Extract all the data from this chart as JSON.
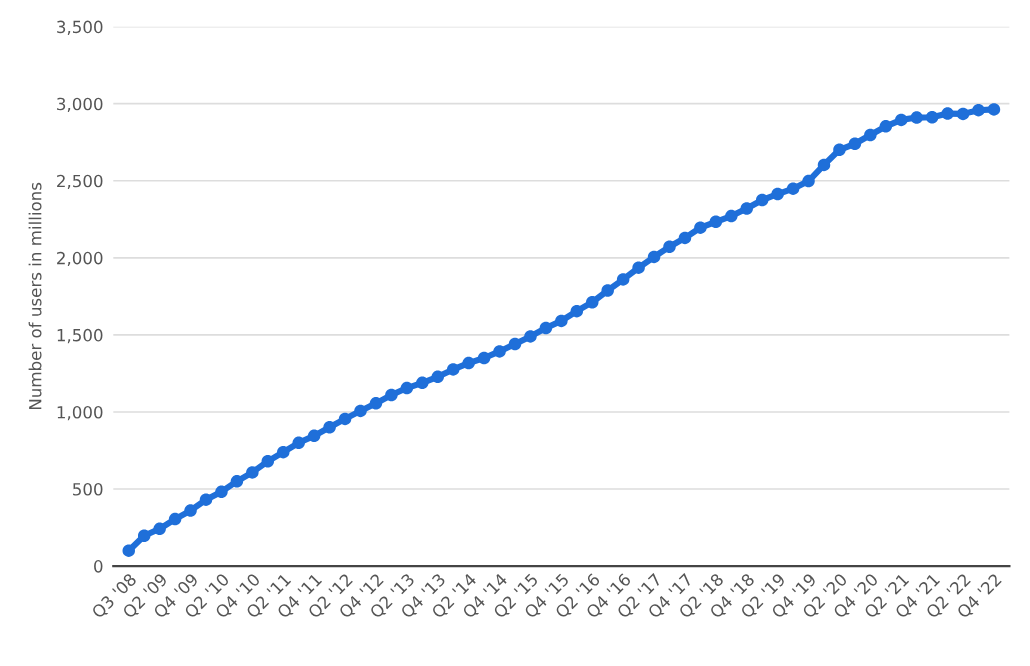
{
  "chart_data": {
    "type": "line",
    "ylabel": "Number of users in millions",
    "categories": [
      "Q3 '08",
      null,
      "Q2 '09",
      null,
      "Q4 '09",
      null,
      "Q2 '10",
      null,
      "Q4 '10",
      null,
      "Q2 '11",
      null,
      "Q4 '11",
      null,
      "Q2 '12",
      null,
      "Q4 '12",
      null,
      "Q2 '13",
      null,
      "Q4 '13",
      null,
      "Q2 '14",
      null,
      "Q4 '14",
      null,
      "Q2 '15",
      null,
      "Q4 '15",
      null,
      "Q2 '16",
      null,
      "Q4 '16",
      null,
      "Q2 '17",
      null,
      "Q4 '17",
      null,
      "Q2 '18",
      null,
      "Q4 '18",
      null,
      "Q2 '19",
      null,
      "Q4 '19",
      null,
      "Q2 '20",
      null,
      "Q4 '20",
      null,
      "Q2 '21",
      null,
      "Q4 '21",
      null,
      "Q2 '22",
      null,
      "Q4 '22"
    ],
    "series": [
      {
        "color": "#1f6fd9",
        "values": [
          100,
          197,
          242,
          305,
          360,
          431,
          482,
          550,
          608,
          680,
          739,
          800,
          845,
          901,
          955,
          1007,
          1056,
          1110,
          1155,
          1189,
          1228,
          1276,
          1317,
          1350,
          1393,
          1441,
          1490,
          1545,
          1591,
          1654,
          1712,
          1788,
          1860,
          1936,
          2006,
          2072,
          2129,
          2196,
          2234,
          2271,
          2320,
          2375,
          2414,
          2449,
          2498,
          2603,
          2701,
          2740,
          2797,
          2853,
          2895,
          2910,
          2912,
          2936,
          2934,
          2958,
          2963
        ]
      }
    ],
    "ylim": [
      0,
      3500
    ],
    "yticks": [
      0,
      {
        "value": 500,
        "label": "500"
      },
      {
        "value": 1000,
        "label": "1,000"
      },
      {
        "value": 1500,
        "label": "1,500"
      },
      {
        "value": 2000,
        "label": "2,000"
      },
      {
        "value": 2500,
        "label": "2,500"
      },
      {
        "value": 3000,
        "label": "3,000"
      },
      {
        "value": 3500,
        "label": "3,500"
      }
    ],
    "grid": "y",
    "marker": "circle",
    "line_style": "solid",
    "legend": false
  }
}
